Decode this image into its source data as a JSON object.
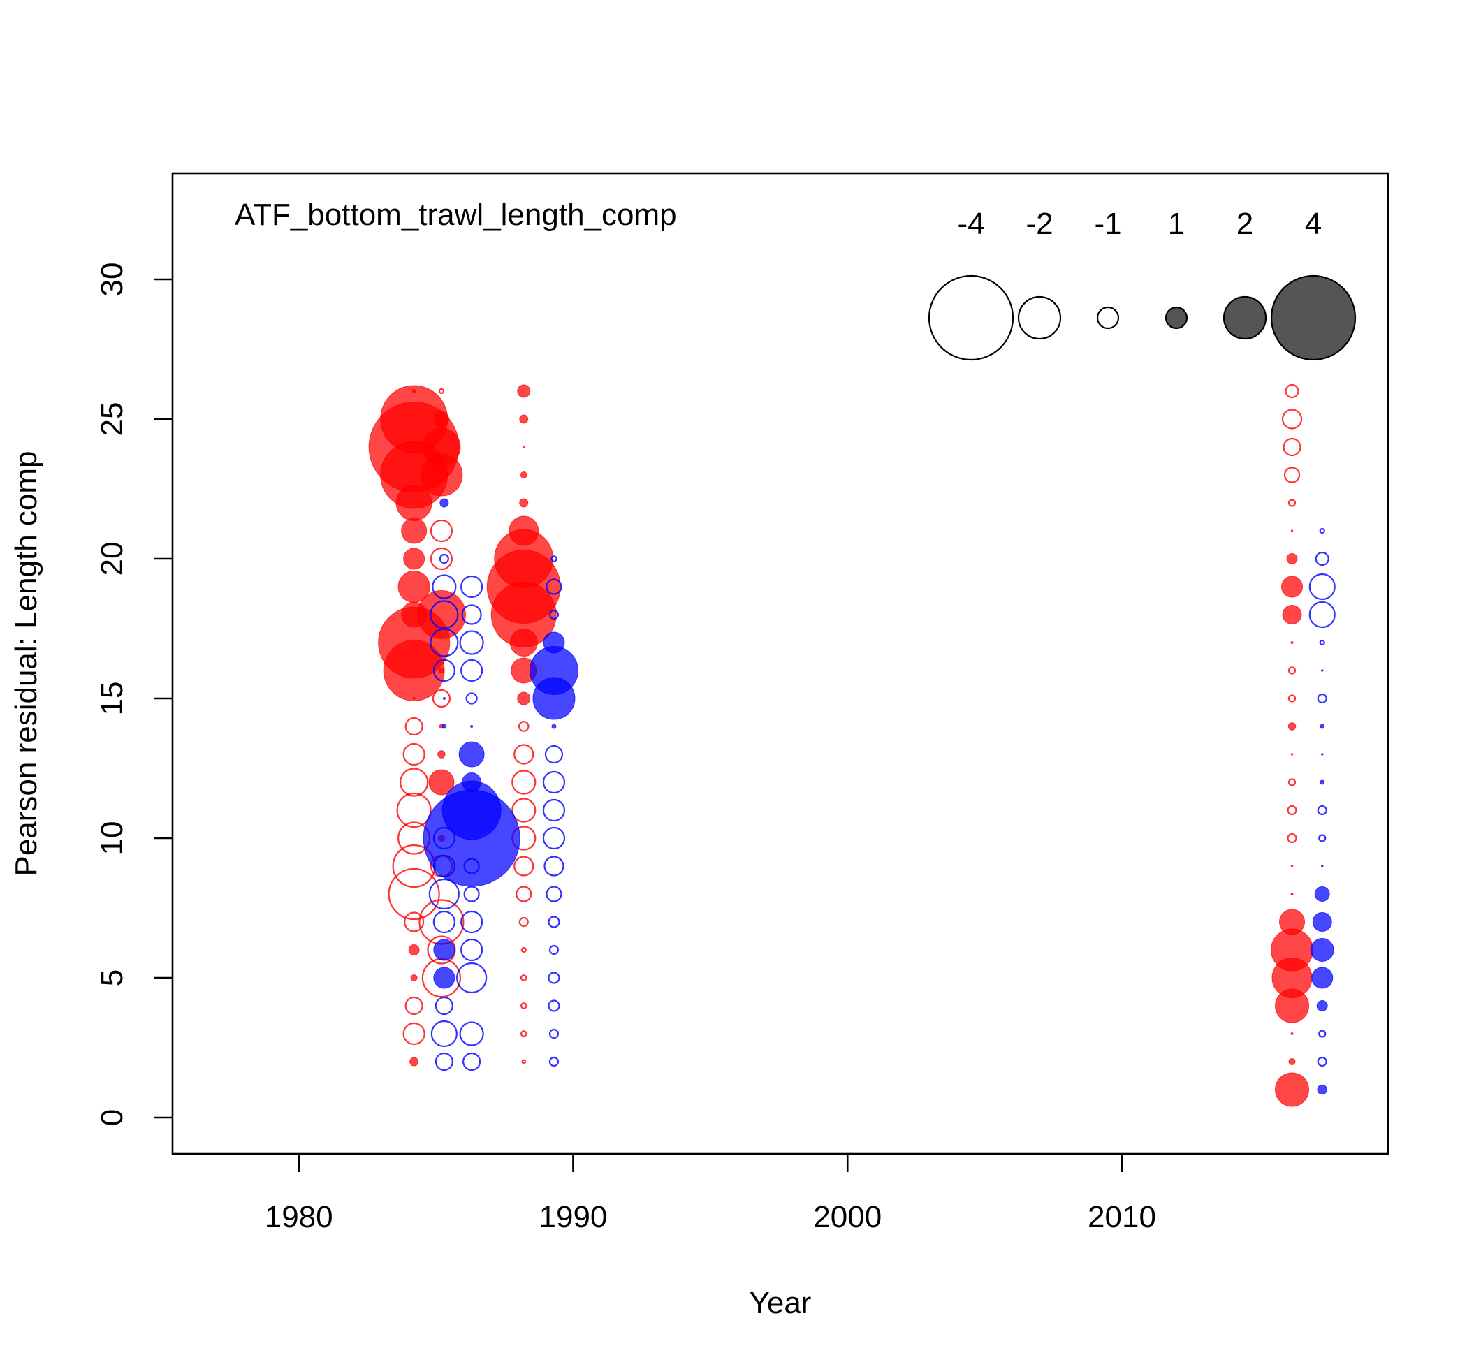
{
  "chart_data": {
    "type": "scatter",
    "title": "ATF_bottom_trawl_length_comp",
    "xlabel": "Year",
    "ylabel": "Pearson residual: Length comp",
    "xlim": [
      1975.4,
      2019.7
    ],
    "ylim": [
      -1.3,
      33.8
    ],
    "xticks": [
      1980,
      1990,
      2000,
      2010
    ],
    "yticks": [
      0,
      5,
      10,
      15,
      20,
      25,
      30
    ],
    "grid": false,
    "legend": {
      "placement": "top-right",
      "entries": [
        {
          "label": "-4",
          "residual": -4
        },
        {
          "label": "-2",
          "residual": -2
        },
        {
          "label": "-1",
          "residual": -1
        },
        {
          "label": "1",
          "residual": 1
        },
        {
          "label": "2",
          "residual": 2
        },
        {
          "label": "4",
          "residual": 4
        }
      ]
    },
    "colors": {
      "positive_fill": "#ff0000",
      "negative_fill": "#0000ff",
      "legend_positive": "#555555",
      "legend_negative_stroke": "#000000"
    },
    "series": [
      {
        "year_offset": -0.3,
        "series_color": "#ff0000",
        "points": [
          {
            "year": 1984.5,
            "length": 26,
            "residual": 0.15
          },
          {
            "year": 1984.5,
            "length": 25,
            "residual": 3.2
          },
          {
            "year": 1984.5,
            "length": 24,
            "residual": 4.3
          },
          {
            "year": 1984.5,
            "length": 23,
            "residual": 3.2
          },
          {
            "year": 1984.5,
            "length": 22,
            "residual": 1.7
          },
          {
            "year": 1984.5,
            "length": 21,
            "residual": 1.2
          },
          {
            "year": 1984.5,
            "length": 20,
            "residual": 1.0
          },
          {
            "year": 1984.5,
            "length": 19,
            "residual": 1.5
          },
          {
            "year": 1984.5,
            "length": 18,
            "residual": 1.2
          },
          {
            "year": 1984.5,
            "length": 17,
            "residual": 3.4
          },
          {
            "year": 1984.5,
            "length": 16,
            "residual": 2.9
          },
          {
            "year": 1984.5,
            "length": 15,
            "residual": 0.1
          },
          {
            "year": 1984.5,
            "length": 14,
            "residual": -0.8
          },
          {
            "year": 1984.5,
            "length": 13,
            "residual": -1.0
          },
          {
            "year": 1984.5,
            "length": 12,
            "residual": -1.3
          },
          {
            "year": 1984.5,
            "length": 11,
            "residual": -1.6
          },
          {
            "year": 1984.5,
            "length": 10,
            "residual": -1.5
          },
          {
            "year": 1984.5,
            "length": 9,
            "residual": -2.0
          },
          {
            "year": 1984.5,
            "length": 8,
            "residual": -2.4
          },
          {
            "year": 1984.5,
            "length": 7,
            "residual": -0.9
          },
          {
            "year": 1984.5,
            "length": 6,
            "residual": 0.5
          },
          {
            "year": 1984.5,
            "length": 5,
            "residual": 0.3
          },
          {
            "year": 1984.5,
            "length": 4,
            "residual": -0.8
          },
          {
            "year": 1984.5,
            "length": 3,
            "residual": -1.0
          },
          {
            "year": 1984.5,
            "length": 2,
            "residual": 0.4
          },
          {
            "year": 1985.5,
            "length": 26,
            "residual": -0.2
          },
          {
            "year": 1985.5,
            "length": 25,
            "residual": 0.7
          },
          {
            "year": 1985.5,
            "length": 24,
            "residual": 1.8
          },
          {
            "year": 1985.5,
            "length": 23,
            "residual": 2.0
          },
          {
            "year": 1985.5,
            "length": 21,
            "residual": -1.0
          },
          {
            "year": 1985.5,
            "length": 20,
            "residual": -1.0
          },
          {
            "year": 1985.5,
            "length": 18,
            "residual": 2.3
          },
          {
            "year": 1985.5,
            "length": 16,
            "residual": 0.25
          },
          {
            "year": 1985.5,
            "length": 15,
            "residual": -0.8
          },
          {
            "year": 1985.5,
            "length": 14,
            "residual": -0.15
          },
          {
            "year": 1985.5,
            "length": 13,
            "residual": 0.35
          },
          {
            "year": 1985.5,
            "length": 12,
            "residual": 1.2
          },
          {
            "year": 1985.5,
            "length": 10,
            "residual": 0.3
          },
          {
            "year": 1985.5,
            "length": 9,
            "residual": -1.0
          },
          {
            "year": 1985.5,
            "length": 7,
            "residual": -2.1
          },
          {
            "year": 1985.5,
            "length": 6,
            "residual": -1.3
          },
          {
            "year": 1985.5,
            "length": 5,
            "residual": -1.8
          },
          {
            "year": 1988.5,
            "length": 26,
            "residual": 0.6
          },
          {
            "year": 1988.5,
            "length": 25,
            "residual": 0.4
          },
          {
            "year": 1988.5,
            "length": 24,
            "residual": 0.1
          },
          {
            "year": 1988.5,
            "length": 23,
            "residual": 0.3
          },
          {
            "year": 1988.5,
            "length": 22,
            "residual": 0.4
          },
          {
            "year": 1988.5,
            "length": 21,
            "residual": 1.4
          },
          {
            "year": 1988.5,
            "length": 20,
            "residual": 2.8
          },
          {
            "year": 1988.5,
            "length": 19,
            "residual": 3.5
          },
          {
            "year": 1988.5,
            "length": 18,
            "residual": 3.1
          },
          {
            "year": 1988.5,
            "length": 17,
            "residual": 1.3
          },
          {
            "year": 1988.5,
            "length": 16,
            "residual": 1.2
          },
          {
            "year": 1988.5,
            "length": 15,
            "residual": 0.6
          },
          {
            "year": 1988.5,
            "length": 14,
            "residual": -0.45
          },
          {
            "year": 1988.5,
            "length": 13,
            "residual": -0.9
          },
          {
            "year": 1988.5,
            "length": 12,
            "residual": -1.1
          },
          {
            "year": 1988.5,
            "length": 11,
            "residual": -1.1
          },
          {
            "year": 1988.5,
            "length": 10,
            "residual": -1.1
          },
          {
            "year": 1988.5,
            "length": 9,
            "residual": -0.9
          },
          {
            "year": 1988.5,
            "length": 8,
            "residual": -0.7
          },
          {
            "year": 1988.5,
            "length": 7,
            "residual": -0.4
          },
          {
            "year": 1988.5,
            "length": 6,
            "residual": -0.2
          },
          {
            "year": 1988.5,
            "length": 5,
            "residual": -0.25
          },
          {
            "year": 1988.5,
            "length": 4,
            "residual": -0.25
          },
          {
            "year": 1988.5,
            "length": 3,
            "residual": -0.25
          },
          {
            "year": 1988.5,
            "length": 2,
            "residual": -0.15
          },
          {
            "year": 2016.5,
            "length": 26,
            "residual": -0.6
          },
          {
            "year": 2016.5,
            "length": 25,
            "residual": -0.9
          },
          {
            "year": 2016.5,
            "length": 24,
            "residual": -0.8
          },
          {
            "year": 2016.5,
            "length": 23,
            "residual": -0.7
          },
          {
            "year": 2016.5,
            "length": 22,
            "residual": -0.3
          },
          {
            "year": 2016.5,
            "length": 21,
            "residual": 0.05
          },
          {
            "year": 2016.5,
            "length": 20,
            "residual": 0.5
          },
          {
            "year": 2016.5,
            "length": 19,
            "residual": 1.0
          },
          {
            "year": 2016.5,
            "length": 18,
            "residual": 0.9
          },
          {
            "year": 2016.5,
            "length": 17,
            "residual": 0.1
          },
          {
            "year": 2016.5,
            "length": 16,
            "residual": -0.3
          },
          {
            "year": 2016.5,
            "length": 15,
            "residual": -0.3
          },
          {
            "year": 2016.5,
            "length": 14,
            "residual": 0.35
          },
          {
            "year": 2016.5,
            "length": 13,
            "residual": 0.05
          },
          {
            "year": 2016.5,
            "length": 12,
            "residual": -0.3
          },
          {
            "year": 2016.5,
            "length": 11,
            "residual": -0.4
          },
          {
            "year": 2016.5,
            "length": 10,
            "residual": -0.4
          },
          {
            "year": 2016.5,
            "length": 9,
            "residual": 0.05
          },
          {
            "year": 2016.5,
            "length": 8,
            "residual": 0.1
          },
          {
            "year": 2016.5,
            "length": 7,
            "residual": 1.2
          },
          {
            "year": 2016.5,
            "length": 6,
            "residual": 2.0
          },
          {
            "year": 2016.5,
            "length": 5,
            "residual": 1.9
          },
          {
            "year": 2016.5,
            "length": 4,
            "residual": 1.6
          },
          {
            "year": 2016.5,
            "length": 3,
            "residual": 0.1
          },
          {
            "year": 2016.5,
            "length": 2,
            "residual": 0.3
          },
          {
            "year": 2016.5,
            "length": 1,
            "residual": 1.6
          }
        ]
      },
      {
        "year_offset": 0.3,
        "series_color": "#0000ff",
        "points": [
          {
            "year": 1985.0,
            "length": 22,
            "residual": 0.4
          },
          {
            "year": 1985.0,
            "length": 20,
            "residual": -0.4
          },
          {
            "year": 1985.0,
            "length": 19,
            "residual": -1.1
          },
          {
            "year": 1985.0,
            "length": 18,
            "residual": -1.3
          },
          {
            "year": 1985.0,
            "length": 17,
            "residual": -1.3
          },
          {
            "year": 1985.0,
            "length": 16,
            "residual": -1.0
          },
          {
            "year": 1985.0,
            "length": 15,
            "residual": 0.1
          },
          {
            "year": 1985.0,
            "length": 14,
            "residual": 0.2
          },
          {
            "year": 1985.0,
            "length": 10,
            "residual": -1.0
          },
          {
            "year": 1985.0,
            "length": 9,
            "residual": -1.0
          },
          {
            "year": 1985.0,
            "length": 8,
            "residual": -1.4
          },
          {
            "year": 1985.0,
            "length": 7,
            "residual": -1.0
          },
          {
            "year": 1985.0,
            "length": 6,
            "residual": 1.0
          },
          {
            "year": 1985.0,
            "length": 5,
            "residual": 1.0
          },
          {
            "year": 1985.0,
            "length": 4,
            "residual": -0.8
          },
          {
            "year": 1985.0,
            "length": 3,
            "residual": -1.2
          },
          {
            "year": 1985.0,
            "length": 2,
            "residual": -0.8
          },
          {
            "year": 1986.0,
            "length": 19,
            "residual": -1.0
          },
          {
            "year": 1986.0,
            "length": 18,
            "residual": -0.9
          },
          {
            "year": 1986.0,
            "length": 17,
            "residual": -1.1
          },
          {
            "year": 1986.0,
            "length": 16,
            "residual": -1.0
          },
          {
            "year": 1986.0,
            "length": 15,
            "residual": -0.5
          },
          {
            "year": 1986.0,
            "length": 14,
            "residual": 0.1
          },
          {
            "year": 1986.0,
            "length": 13,
            "residual": 1.2
          },
          {
            "year": 1986.0,
            "length": 12,
            "residual": 0.9
          },
          {
            "year": 1986.0,
            "length": 11,
            "residual": 2.8
          },
          {
            "year": 1986.0,
            "length": 10,
            "residual": 4.6
          },
          {
            "year": 1986.0,
            "length": 9,
            "residual": -0.7
          },
          {
            "year": 1986.0,
            "length": 8,
            "residual": -0.7
          },
          {
            "year": 1986.0,
            "length": 7,
            "residual": -1.0
          },
          {
            "year": 1986.0,
            "length": 6,
            "residual": -1.0
          },
          {
            "year": 1986.0,
            "length": 5,
            "residual": -1.4
          },
          {
            "year": 1986.0,
            "length": 3,
            "residual": -1.1
          },
          {
            "year": 1986.0,
            "length": 2,
            "residual": -0.8
          },
          {
            "year": 1989.0,
            "length": 20,
            "residual": -0.25
          },
          {
            "year": 1989.0,
            "length": 19,
            "residual": -0.7
          },
          {
            "year": 1989.0,
            "length": 18,
            "residual": -0.4
          },
          {
            "year": 1989.0,
            "length": 17,
            "residual": 1.0
          },
          {
            "year": 1989.0,
            "length": 16,
            "residual": 2.3
          },
          {
            "year": 1989.0,
            "length": 15,
            "residual": 2.0
          },
          {
            "year": 1989.0,
            "length": 14,
            "residual": 0.2
          },
          {
            "year": 1989.0,
            "length": 13,
            "residual": -0.8
          },
          {
            "year": 1989.0,
            "length": 12,
            "residual": -1.0
          },
          {
            "year": 1989.0,
            "length": 11,
            "residual": -1.0
          },
          {
            "year": 1989.0,
            "length": 10,
            "residual": -1.0
          },
          {
            "year": 1989.0,
            "length": 9,
            "residual": -0.9
          },
          {
            "year": 1989.0,
            "length": 8,
            "residual": -0.7
          },
          {
            "year": 1989.0,
            "length": 7,
            "residual": -0.5
          },
          {
            "year": 1989.0,
            "length": 6,
            "residual": -0.4
          },
          {
            "year": 1989.0,
            "length": 5,
            "residual": -0.5
          },
          {
            "year": 1989.0,
            "length": 4,
            "residual": -0.5
          },
          {
            "year": 1989.0,
            "length": 3,
            "residual": -0.4
          },
          {
            "year": 1989.0,
            "length": 2,
            "residual": -0.4
          },
          {
            "year": 2017.0,
            "length": 21,
            "residual": -0.2
          },
          {
            "year": 2017.0,
            "length": 20,
            "residual": -0.6
          },
          {
            "year": 2017.0,
            "length": 19,
            "residual": -1.2
          },
          {
            "year": 2017.0,
            "length": 18,
            "residual": -1.2
          },
          {
            "year": 2017.0,
            "length": 17,
            "residual": -0.2
          },
          {
            "year": 2017.0,
            "length": 16,
            "residual": 0.05
          },
          {
            "year": 2017.0,
            "length": 15,
            "residual": -0.4
          },
          {
            "year": 2017.0,
            "length": 14,
            "residual": 0.2
          },
          {
            "year": 2017.0,
            "length": 13,
            "residual": 0.05
          },
          {
            "year": 2017.0,
            "length": 12,
            "residual": 0.2
          },
          {
            "year": 2017.0,
            "length": 11,
            "residual": -0.4
          },
          {
            "year": 2017.0,
            "length": 10,
            "residual": -0.3
          },
          {
            "year": 2017.0,
            "length": 9,
            "residual": 0.05
          },
          {
            "year": 2017.0,
            "length": 8,
            "residual": 0.7
          },
          {
            "year": 2017.0,
            "length": 7,
            "residual": 0.9
          },
          {
            "year": 2017.0,
            "length": 6,
            "residual": 1.1
          },
          {
            "year": 2017.0,
            "length": 5,
            "residual": 1.0
          },
          {
            "year": 2017.0,
            "length": 4,
            "residual": 0.5
          },
          {
            "year": 2017.0,
            "length": 3,
            "residual": -0.3
          },
          {
            "year": 2017.0,
            "length": 2,
            "residual": -0.4
          },
          {
            "year": 2017.0,
            "length": 1,
            "residual": 0.45
          }
        ]
      }
    ]
  }
}
